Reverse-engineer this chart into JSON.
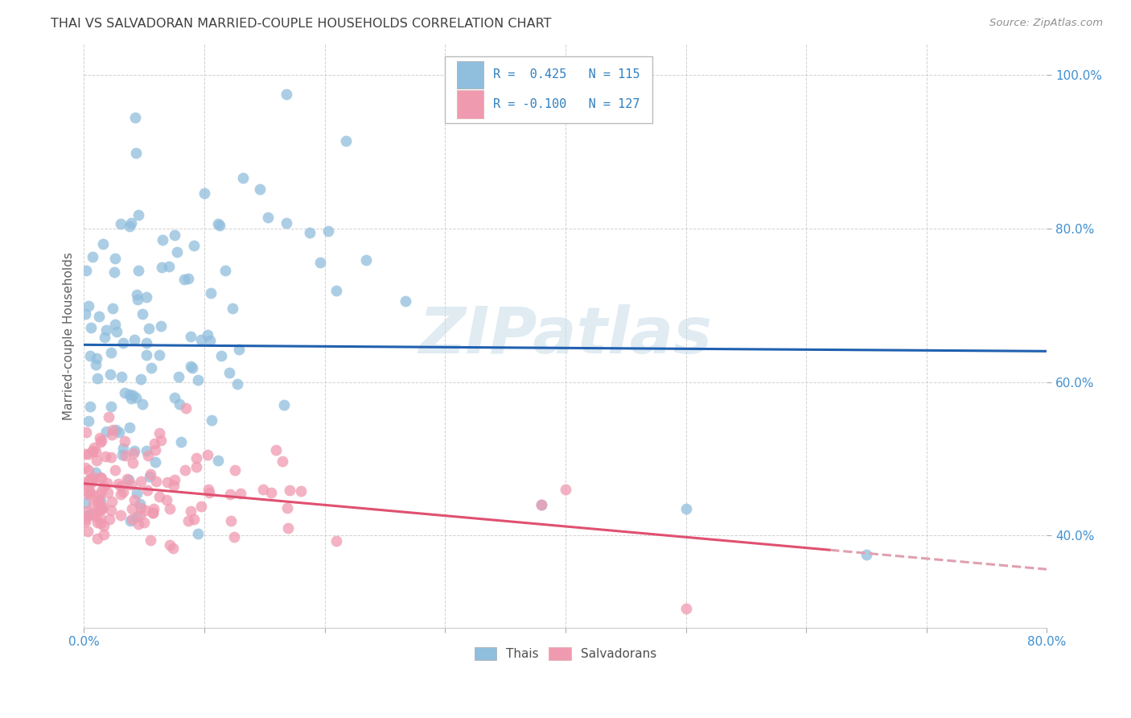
{
  "title": "THAI VS SALVADORAN MARRIED-COUPLE HOUSEHOLDS CORRELATION CHART",
  "source": "Source: ZipAtlas.com",
  "ylabel": "Married-couple Households",
  "watermark": "ZIPatlas",
  "legend_thai_R": 0.425,
  "legend_thai_N": 115,
  "legend_salv_R": -0.1,
  "legend_salv_N": 127,
  "xlim": [
    0.0,
    0.8
  ],
  "ylim": [
    0.28,
    1.04
  ],
  "yticks": [
    0.4,
    0.6,
    0.8,
    1.0
  ],
  "ytick_labels": [
    "40.0%",
    "60.0%",
    "80.0%",
    "100.0%"
  ],
  "thai_color": "#90bedd",
  "salvadoran_color": "#f09ab0",
  "thai_line_color": "#2060b0",
  "salvadoran_line_color": "#e05070",
  "salvadoran_line_dashed_color": "#e0a0b0",
  "background_color": "#ffffff",
  "grid_color": "#cccccc",
  "title_color": "#404040",
  "axis_tick_color": "#4090d0",
  "watermark_color": "#c8dce8",
  "legend_text_color": "#3080c0",
  "bottom_label_color": "#505050"
}
